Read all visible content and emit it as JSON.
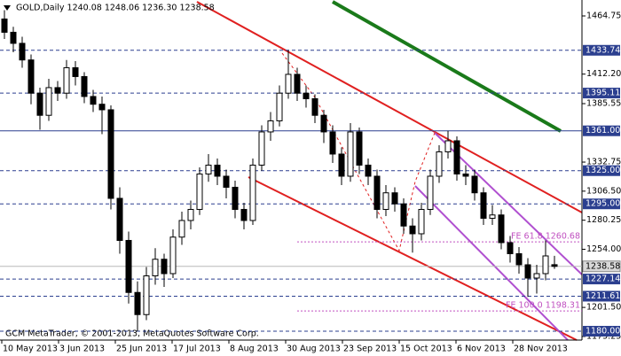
{
  "chart_data": {
    "type": "candlestick",
    "header": "GOLD,Daily  1240.08 1248.06 1236.30 1238.58",
    "footer": "GCM MetaTrader, © 2001-2013, MetaQuotes Software Corp.",
    "ylim": [
      1172,
      1479.15
    ],
    "xlim": [
      -0.5,
      65.1
    ],
    "yticks": [
      1464.75,
      {
        "value": 1412.2,
        "label": "1412.20"
      },
      1385.55,
      1332.75,
      {
        "value": 1306.5,
        "label": "1306.50"
      },
      1280.25,
      {
        "value": 1254,
        "label": "1254.00"
      },
      {
        "value": 1201.5,
        "label": "1201.50"
      },
      1175.25
    ],
    "xticks": [
      {
        "value": -0.3,
        "label": "10 May 2013"
      },
      {
        "value": 6.1,
        "label": "3 Jun 2013"
      },
      {
        "value": 12.5,
        "label": "25 Jun 2013"
      },
      {
        "value": 18.9,
        "label": "17 Jul 2013"
      },
      {
        "value": 25.3,
        "label": "8 Aug 2013"
      },
      {
        "value": 31.7,
        "label": "30 Aug 2013"
      },
      {
        "value": 38.1,
        "label": "23 Sep 2013"
      },
      {
        "value": 44.5,
        "label": "15 Oct 2013"
      },
      {
        "value": 50.9,
        "label": "6 Nov 2013"
      },
      {
        "value": 57.3,
        "label": "28 Nov 2013"
      }
    ],
    "levels": [
      1433.74,
      1395.11,
      {
        "value": 1361,
        "label": "1361.00"
      },
      {
        "value": 1325,
        "label": "1325.00"
      },
      {
        "value": 1295,
        "label": "1295.00"
      },
      1227.14,
      1211.61,
      {
        "value": 1180,
        "label": "1180.00"
      }
    ],
    "level_color": "#2b3f8f",
    "current": 1238.58,
    "fibo": [
      {
        "value": 1260.68,
        "label": "FE 61.8 1260.68"
      },
      {
        "value": 1198.31,
        "label": "FE 100.0 1198.31"
      }
    ],
    "fibo_color": "#c050c0",
    "series": {
      "open": [
        1462,
        1450,
        1440,
        1425,
        1395,
        1375,
        1400,
        1395,
        1418,
        1410,
        1392,
        1385,
        1380,
        1300,
        1262,
        1215,
        1195,
        1230,
        1245,
        1232,
        1265,
        1280,
        1290,
        1322,
        1330,
        1320,
        1310,
        1290,
        1280,
        1330,
        1360,
        1370,
        1395,
        1412,
        1395,
        1390,
        1375,
        1360,
        1340,
        1320,
        1360,
        1330,
        1320,
        1290,
        1305,
        1295,
        1275,
        1268,
        1290,
        1320,
        1342,
        1352,
        1322,
        1320,
        1305,
        1282,
        1285,
        1260,
        1250,
        1240,
        1228,
        1232,
        1240.08
      ],
      "high": [
        1470,
        1455,
        1446,
        1430,
        1400,
        1408,
        1406,
        1425,
        1424,
        1414,
        1398,
        1392,
        1384,
        1310,
        1270,
        1225,
        1238,
        1255,
        1250,
        1272,
        1288,
        1298,
        1328,
        1340,
        1336,
        1326,
        1316,
        1296,
        1336,
        1366,
        1378,
        1402,
        1434,
        1418,
        1402,
        1394,
        1380,
        1366,
        1346,
        1368,
        1364,
        1336,
        1326,
        1312,
        1310,
        1300,
        1282,
        1296,
        1326,
        1348,
        1361,
        1356,
        1330,
        1326,
        1310,
        1294,
        1290,
        1266,
        1256,
        1246,
        1240,
        1262,
        1248.06
      ],
      "low": [
        1444,
        1432,
        1418,
        1385,
        1362,
        1370,
        1388,
        1390,
        1402,
        1386,
        1378,
        1358,
        1290,
        1250,
        1205,
        1180,
        1190,
        1222,
        1220,
        1228,
        1258,
        1272,
        1285,
        1315,
        1312,
        1300,
        1282,
        1272,
        1276,
        1325,
        1352,
        1365,
        1390,
        1388,
        1382,
        1368,
        1350,
        1332,
        1312,
        1315,
        1322,
        1312,
        1282,
        1284,
        1288,
        1268,
        1251,
        1262,
        1285,
        1314,
        1336,
        1316,
        1312,
        1298,
        1276,
        1276,
        1254,
        1242,
        1232,
        1211,
        1214,
        1226,
        1236.3
      ],
      "close": [
        1450,
        1440,
        1425,
        1395,
        1375,
        1400,
        1395,
        1418,
        1410,
        1392,
        1385,
        1380,
        1300,
        1262,
        1215,
        1195,
        1230,
        1245,
        1232,
        1265,
        1280,
        1290,
        1322,
        1330,
        1320,
        1310,
        1290,
        1280,
        1330,
        1360,
        1370,
        1395,
        1412,
        1395,
        1390,
        1375,
        1360,
        1340,
        1320,
        1360,
        1330,
        1320,
        1290,
        1305,
        1295,
        1275,
        1268,
        1290,
        1320,
        1342,
        1352,
        1322,
        1320,
        1305,
        1282,
        1285,
        1260,
        1250,
        1240,
        1228,
        1232,
        1248,
        1238.58
      ]
    }
  }
}
